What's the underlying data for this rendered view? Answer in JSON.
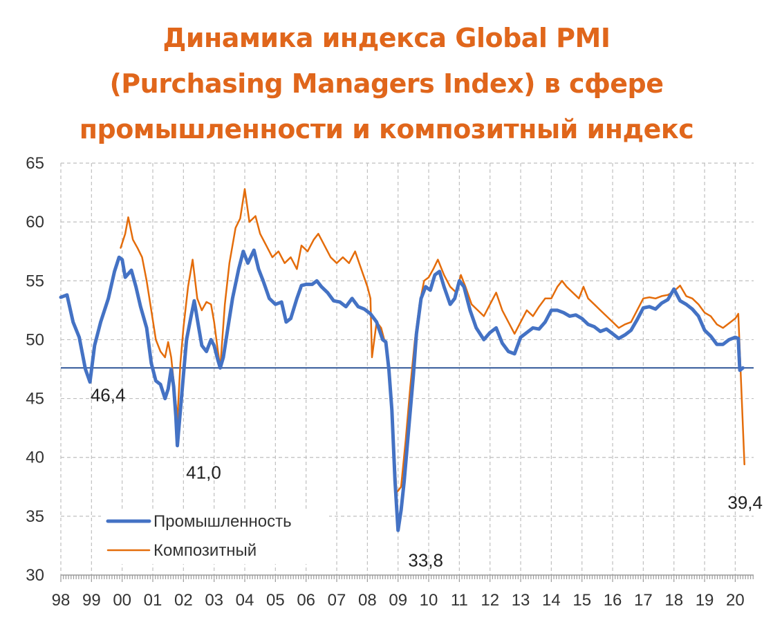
{
  "title_lines": [
    "Динамика индекса Global PMI",
    "(Purchasing Managers Index) в сфере",
    "промышленности и композитный индекс"
  ],
  "colors": {
    "title": "#e0661b",
    "industry": "#4472c4",
    "composite": "#e46c0a",
    "reference_line": "#2f5597",
    "grid": "#bfbfbf"
  },
  "chart_data": {
    "type": "line",
    "title": "Динамика индекса Global PMI (Purchasing Managers Index) в сфере промышленности и композитный индекс",
    "xlabel": "",
    "ylabel": "",
    "x_ticks": [
      "98",
      "99",
      "00",
      "01",
      "02",
      "03",
      "04",
      "05",
      "06",
      "07",
      "08",
      "09",
      "10",
      "11",
      "12",
      "13",
      "14",
      "15",
      "16",
      "17",
      "18",
      "19",
      "20"
    ],
    "xlim": [
      1998.0,
      2020.6
    ],
    "y_ticks": [
      "30",
      "35",
      "40",
      "45",
      "50",
      "55",
      "60",
      "65"
    ],
    "ylim": [
      30,
      65
    ],
    "grid": true,
    "legend_position": "bottom-left",
    "reference_line": 47.6,
    "series": [
      {
        "name": "Промышленность",
        "color": "#4472c4",
        "points": [
          [
            1998.0,
            53.6
          ],
          [
            1998.2,
            53.8
          ],
          [
            1998.4,
            51.5
          ],
          [
            1998.6,
            50.2
          ],
          [
            1998.8,
            47.5
          ],
          [
            1998.95,
            46.4
          ],
          [
            1999.1,
            49.5
          ],
          [
            1999.3,
            51.5
          ],
          [
            1999.55,
            53.5
          ],
          [
            1999.75,
            55.8
          ],
          [
            1999.9,
            57.0
          ],
          [
            2000.0,
            56.8
          ],
          [
            2000.1,
            55.3
          ],
          [
            2000.3,
            55.9
          ],
          [
            2000.45,
            54.5
          ],
          [
            2000.6,
            52.8
          ],
          [
            2000.8,
            51.0
          ],
          [
            2000.95,
            48.0
          ],
          [
            2001.1,
            46.5
          ],
          [
            2001.25,
            46.2
          ],
          [
            2001.4,
            45.0
          ],
          [
            2001.5,
            45.8
          ],
          [
            2001.6,
            47.5
          ],
          [
            2001.68,
            46.0
          ],
          [
            2001.75,
            43.5
          ],
          [
            2001.8,
            41.0
          ],
          [
            2001.9,
            44.0
          ],
          [
            2002.0,
            47.0
          ],
          [
            2002.1,
            50.0
          ],
          [
            2002.25,
            52.0
          ],
          [
            2002.35,
            53.3
          ],
          [
            2002.5,
            51.0
          ],
          [
            2002.6,
            49.5
          ],
          [
            2002.75,
            49.0
          ],
          [
            2002.9,
            50.0
          ],
          [
            2003.0,
            49.5
          ],
          [
            2003.1,
            48.5
          ],
          [
            2003.2,
            47.6
          ],
          [
            2003.3,
            48.5
          ],
          [
            2003.45,
            51.0
          ],
          [
            2003.6,
            53.5
          ],
          [
            2003.8,
            56.0
          ],
          [
            2003.95,
            57.5
          ],
          [
            2004.1,
            56.5
          ],
          [
            2004.3,
            57.6
          ],
          [
            2004.45,
            56.0
          ],
          [
            2004.6,
            55.0
          ],
          [
            2004.8,
            53.5
          ],
          [
            2005.0,
            53.0
          ],
          [
            2005.2,
            53.2
          ],
          [
            2005.35,
            51.5
          ],
          [
            2005.5,
            51.8
          ],
          [
            2005.7,
            53.5
          ],
          [
            2005.85,
            54.6
          ],
          [
            2006.0,
            54.7
          ],
          [
            2006.2,
            54.7
          ],
          [
            2006.35,
            55.0
          ],
          [
            2006.5,
            54.5
          ],
          [
            2006.7,
            54.0
          ],
          [
            2006.9,
            53.3
          ],
          [
            2007.1,
            53.2
          ],
          [
            2007.3,
            52.8
          ],
          [
            2007.5,
            53.5
          ],
          [
            2007.7,
            52.8
          ],
          [
            2007.9,
            52.6
          ],
          [
            2008.1,
            52.2
          ],
          [
            2008.3,
            51.5
          ],
          [
            2008.5,
            50.0
          ],
          [
            2008.6,
            49.8
          ],
          [
            2008.7,
            47.5
          ],
          [
            2008.8,
            44.0
          ],
          [
            2008.9,
            38.0
          ],
          [
            2009.0,
            33.8
          ],
          [
            2009.1,
            35.5
          ],
          [
            2009.2,
            38.0
          ],
          [
            2009.35,
            42.5
          ],
          [
            2009.5,
            47.0
          ],
          [
            2009.6,
            50.5
          ],
          [
            2009.75,
            53.5
          ],
          [
            2009.9,
            54.5
          ],
          [
            2010.05,
            54.2
          ],
          [
            2010.2,
            55.5
          ],
          [
            2010.35,
            55.8
          ],
          [
            2010.5,
            54.5
          ],
          [
            2010.7,
            53.0
          ],
          [
            2010.85,
            53.5
          ],
          [
            2011.0,
            55.0
          ],
          [
            2011.15,
            54.5
          ],
          [
            2011.35,
            52.5
          ],
          [
            2011.55,
            51.0
          ],
          [
            2011.8,
            50.0
          ],
          [
            2012.0,
            50.6
          ],
          [
            2012.2,
            51.0
          ],
          [
            2012.4,
            49.7
          ],
          [
            2012.6,
            49.0
          ],
          [
            2012.8,
            48.8
          ],
          [
            2013.0,
            50.2
          ],
          [
            2013.2,
            50.6
          ],
          [
            2013.4,
            51.0
          ],
          [
            2013.6,
            50.9
          ],
          [
            2013.8,
            51.5
          ],
          [
            2014.0,
            52.5
          ],
          [
            2014.2,
            52.5
          ],
          [
            2014.4,
            52.3
          ],
          [
            2014.6,
            52.0
          ],
          [
            2014.8,
            52.1
          ],
          [
            2015.0,
            51.8
          ],
          [
            2015.2,
            51.3
          ],
          [
            2015.4,
            51.1
          ],
          [
            2015.6,
            50.7
          ],
          [
            2015.8,
            50.9
          ],
          [
            2016.0,
            50.5
          ],
          [
            2016.2,
            50.1
          ],
          [
            2016.4,
            50.4
          ],
          [
            2016.6,
            50.8
          ],
          [
            2016.8,
            51.7
          ],
          [
            2017.0,
            52.7
          ],
          [
            2017.2,
            52.8
          ],
          [
            2017.4,
            52.6
          ],
          [
            2017.6,
            53.1
          ],
          [
            2017.8,
            53.4
          ],
          [
            2018.0,
            54.3
          ],
          [
            2018.2,
            53.3
          ],
          [
            2018.4,
            53.0
          ],
          [
            2018.6,
            52.6
          ],
          [
            2018.8,
            52.0
          ],
          [
            2019.0,
            50.8
          ],
          [
            2019.2,
            50.3
          ],
          [
            2019.4,
            49.6
          ],
          [
            2019.6,
            49.6
          ],
          [
            2019.8,
            50.0
          ],
          [
            2020.0,
            50.2
          ],
          [
            2020.1,
            50.1
          ],
          [
            2020.15,
            47.4
          ],
          [
            2020.25,
            47.6
          ]
        ],
        "annotations": [
          {
            "label": "46,4",
            "x": 1998.95,
            "y": 46.4
          },
          {
            "label": "41,0",
            "x": 2001.8,
            "y": 41.0
          },
          {
            "label": "33,8",
            "x": 2009.0,
            "y": 33.8
          }
        ]
      },
      {
        "name": "Композитный",
        "color": "#e46c0a",
        "points": [
          [
            1999.95,
            57.8
          ],
          [
            2000.1,
            59.0
          ],
          [
            2000.2,
            60.4
          ],
          [
            2000.35,
            58.5
          ],
          [
            2000.5,
            57.8
          ],
          [
            2000.65,
            57.0
          ],
          [
            2000.8,
            55.0
          ],
          [
            2000.95,
            52.5
          ],
          [
            2001.1,
            50.0
          ],
          [
            2001.25,
            49.0
          ],
          [
            2001.4,
            48.5
          ],
          [
            2001.5,
            49.8
          ],
          [
            2001.6,
            48.5
          ],
          [
            2001.7,
            46.0
          ],
          [
            2001.8,
            43.2
          ],
          [
            2001.9,
            48.0
          ],
          [
            2002.0,
            51.0
          ],
          [
            2002.15,
            54.5
          ],
          [
            2002.3,
            56.8
          ],
          [
            2002.45,
            53.5
          ],
          [
            2002.6,
            52.5
          ],
          [
            2002.75,
            53.2
          ],
          [
            2002.9,
            53.0
          ],
          [
            2003.0,
            51.5
          ],
          [
            2003.1,
            49.5
          ],
          [
            2003.2,
            47.6
          ],
          [
            2003.35,
            53.0
          ],
          [
            2003.5,
            56.5
          ],
          [
            2003.7,
            59.5
          ],
          [
            2003.85,
            60.3
          ],
          [
            2004.0,
            62.8
          ],
          [
            2004.15,
            60.0
          ],
          [
            2004.35,
            60.5
          ],
          [
            2004.5,
            59.0
          ],
          [
            2004.7,
            58.0
          ],
          [
            2004.9,
            57.0
          ],
          [
            2005.1,
            57.5
          ],
          [
            2005.3,
            56.5
          ],
          [
            2005.5,
            57.0
          ],
          [
            2005.7,
            56.0
          ],
          [
            2005.85,
            58.0
          ],
          [
            2006.05,
            57.5
          ],
          [
            2006.25,
            58.5
          ],
          [
            2006.4,
            59.0
          ],
          [
            2006.6,
            58.0
          ],
          [
            2006.8,
            57.0
          ],
          [
            2007.0,
            56.5
          ],
          [
            2007.2,
            57.0
          ],
          [
            2007.4,
            56.5
          ],
          [
            2007.6,
            57.5
          ],
          [
            2007.8,
            56.0
          ],
          [
            2008.0,
            54.5
          ],
          [
            2008.1,
            53.5
          ],
          [
            2008.15,
            48.5
          ],
          [
            2008.3,
            51.5
          ],
          [
            2008.45,
            51.0
          ],
          [
            2008.6,
            49.5
          ],
          [
            2008.75,
            46.0
          ],
          [
            2008.85,
            42.0
          ],
          [
            2008.95,
            37.0
          ],
          [
            2009.1,
            37.5
          ],
          [
            2009.25,
            41.5
          ],
          [
            2009.4,
            46.0
          ],
          [
            2009.55,
            50.0
          ],
          [
            2009.7,
            53.0
          ],
          [
            2009.85,
            55.0
          ],
          [
            2010.0,
            55.3
          ],
          [
            2010.15,
            56.0
          ],
          [
            2010.3,
            56.8
          ],
          [
            2010.5,
            55.5
          ],
          [
            2010.7,
            54.5
          ],
          [
            2010.9,
            54.0
          ],
          [
            2011.05,
            55.5
          ],
          [
            2011.2,
            54.5
          ],
          [
            2011.4,
            53.0
          ],
          [
            2011.6,
            52.5
          ],
          [
            2011.8,
            52.0
          ],
          [
            2012.0,
            53.0
          ],
          [
            2012.2,
            54.0
          ],
          [
            2012.4,
            52.5
          ],
          [
            2012.6,
            51.5
          ],
          [
            2012.8,
            50.5
          ],
          [
            2013.0,
            51.5
          ],
          [
            2013.2,
            52.5
          ],
          [
            2013.4,
            52.0
          ],
          [
            2013.6,
            52.8
          ],
          [
            2013.8,
            53.5
          ],
          [
            2014.0,
            53.5
          ],
          [
            2014.2,
            54.5
          ],
          [
            2014.35,
            55.0
          ],
          [
            2014.5,
            54.5
          ],
          [
            2014.7,
            54.0
          ],
          [
            2014.9,
            53.5
          ],
          [
            2015.05,
            54.5
          ],
          [
            2015.2,
            53.5
          ],
          [
            2015.4,
            53.0
          ],
          [
            2015.6,
            52.5
          ],
          [
            2015.8,
            52.0
          ],
          [
            2016.0,
            51.5
          ],
          [
            2016.2,
            51.0
          ],
          [
            2016.4,
            51.3
          ],
          [
            2016.6,
            51.5
          ],
          [
            2016.8,
            52.5
          ],
          [
            2017.0,
            53.5
          ],
          [
            2017.2,
            53.6
          ],
          [
            2017.4,
            53.5
          ],
          [
            2017.6,
            53.7
          ],
          [
            2017.8,
            53.8
          ],
          [
            2018.0,
            54.1
          ],
          [
            2018.2,
            54.6
          ],
          [
            2018.4,
            53.7
          ],
          [
            2018.6,
            53.5
          ],
          [
            2018.8,
            53.0
          ],
          [
            2019.0,
            52.3
          ],
          [
            2019.2,
            52.0
          ],
          [
            2019.4,
            51.3
          ],
          [
            2019.6,
            51.0
          ],
          [
            2019.8,
            51.4
          ],
          [
            2020.0,
            51.8
          ],
          [
            2020.1,
            52.2
          ],
          [
            2020.18,
            47.0
          ],
          [
            2020.3,
            39.4
          ]
        ],
        "annotations": [
          {
            "label": "39,4",
            "x": 2020.3,
            "y": 39.4
          }
        ]
      }
    ]
  }
}
